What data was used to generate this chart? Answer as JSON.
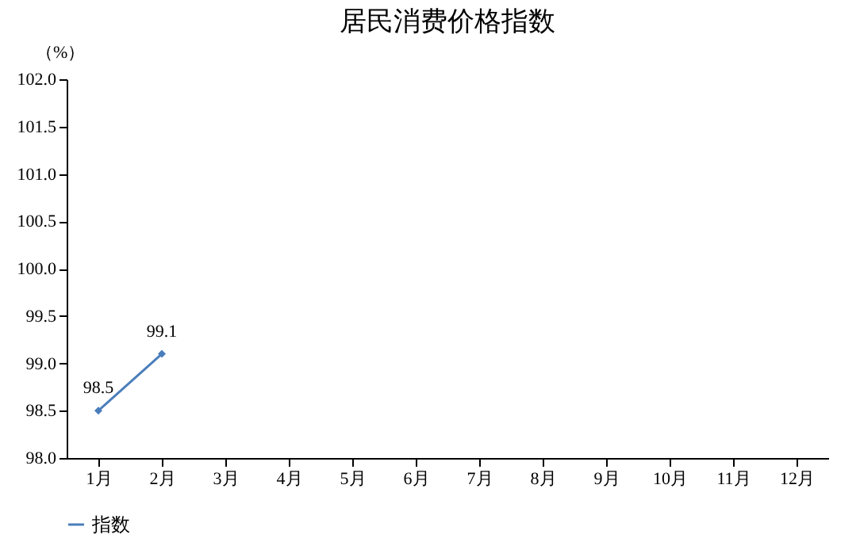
{
  "chart_data": {
    "type": "line",
    "title": "居民消费价格指数",
    "ylabel": "（%）",
    "categories": [
      "1月",
      "2月",
      "3月",
      "4月",
      "5月",
      "6月",
      "7月",
      "8月",
      "9月",
      "10月",
      "11月",
      "12月"
    ],
    "series": [
      {
        "name": "指数",
        "color": "#4a7ebb",
        "values": [
          98.5,
          99.1,
          null,
          null,
          null,
          null,
          null,
          null,
          null,
          null,
          null,
          null
        ]
      }
    ],
    "ylim": [
      98.0,
      102.0
    ],
    "yticks": [
      {
        "value": 98,
        "label": "98.0"
      },
      98.5,
      {
        "value": 99,
        "label": "99.0"
      },
      99.5,
      {
        "value": 100,
        "label": "100.0"
      },
      100.5,
      {
        "value": 101,
        "label": "101.0"
      },
      101.5,
      {
        "value": 102,
        "label": "102.0"
      }
    ],
    "data_labels": true,
    "marker": "diamond",
    "line_style": "solid",
    "grid": false,
    "legend": "bottom"
  }
}
